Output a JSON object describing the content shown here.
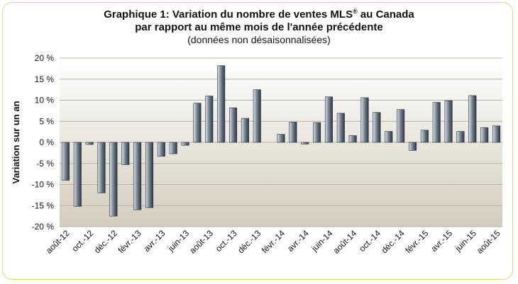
{
  "chart_data": {
    "type": "bar",
    "title_line1_main": "Graphique 1: Variation du nombre de ventes MLS",
    "title_line1_sup": "®",
    "title_line1_end": " au Canada",
    "title_line2": "par rapport au même mois de l'année précédente",
    "subtitle": "(données non désaisonnalisées)",
    "ylabel": "Variation sur un an",
    "xlabel": "",
    "ylim": [
      -20,
      20
    ],
    "yticks": [
      20,
      15,
      10,
      5,
      0,
      -5,
      -10,
      -15,
      -20
    ],
    "ytick_labels": [
      "20 %",
      "15 %",
      "10 %",
      "5 %",
      "0 %",
      "-5 %",
      "-10 %",
      "-15 %",
      "-20 %"
    ],
    "categories": [
      "août-12",
      "sept.-12",
      "oct.-12",
      "nov.-12",
      "déc.-12",
      "janv.-13",
      "févr.-13",
      "mars-13",
      "avr.-13",
      "mai-13",
      "juin-13",
      "juil.-13",
      "août-13",
      "sept.-13",
      "oct.-13",
      "nov.-13",
      "déc.-13",
      "janv.-14",
      "févr.-14",
      "mars-14",
      "avr.-14",
      "mai-14",
      "juin-14",
      "juil.-14",
      "août-14",
      "sept.-14",
      "oct.-14",
      "nov.-14",
      "déc.-14",
      "janv.-15",
      "févr.-15",
      "mars-15",
      "avr.-15",
      "mai-15",
      "juin-15",
      "juil.-15",
      "août-15"
    ],
    "xtick_labels_shown": [
      "août-12",
      "oct.-12",
      "déc.-12",
      "févr.-13",
      "avr.-13",
      "juin-13",
      "août-13",
      "oct.-13",
      "déc.-13",
      "févr.-14",
      "avr.-14",
      "juin-14",
      "août-14",
      "oct.-14",
      "déc.-14",
      "févr.-15",
      "avr.-15",
      "juin-15",
      "août-15"
    ],
    "values": [
      -9,
      -15.2,
      -0.5,
      -12,
      -17.5,
      -5.3,
      -16,
      -15.5,
      -3.3,
      -2.7,
      -0.7,
      9.3,
      11,
      18.2,
      8.2,
      5.7,
      12.5,
      0,
      1.9,
      4.8,
      -0.4,
      4.7,
      10.8,
      6.9,
      1.6,
      10.6,
      7.1,
      2.6,
      7.8,
      -1.9,
      2.9,
      9.5,
      9.9,
      2.6,
      11.1,
      3.5,
      3.9
    ],
    "grid": true,
    "colors": {
      "bar_dark": "#2f3a45",
      "bar_light": "#dce3ea",
      "plot_top": "#ffffff",
      "plot_bottom": "#d4cdbd",
      "frame": "#e8cf86"
    }
  }
}
